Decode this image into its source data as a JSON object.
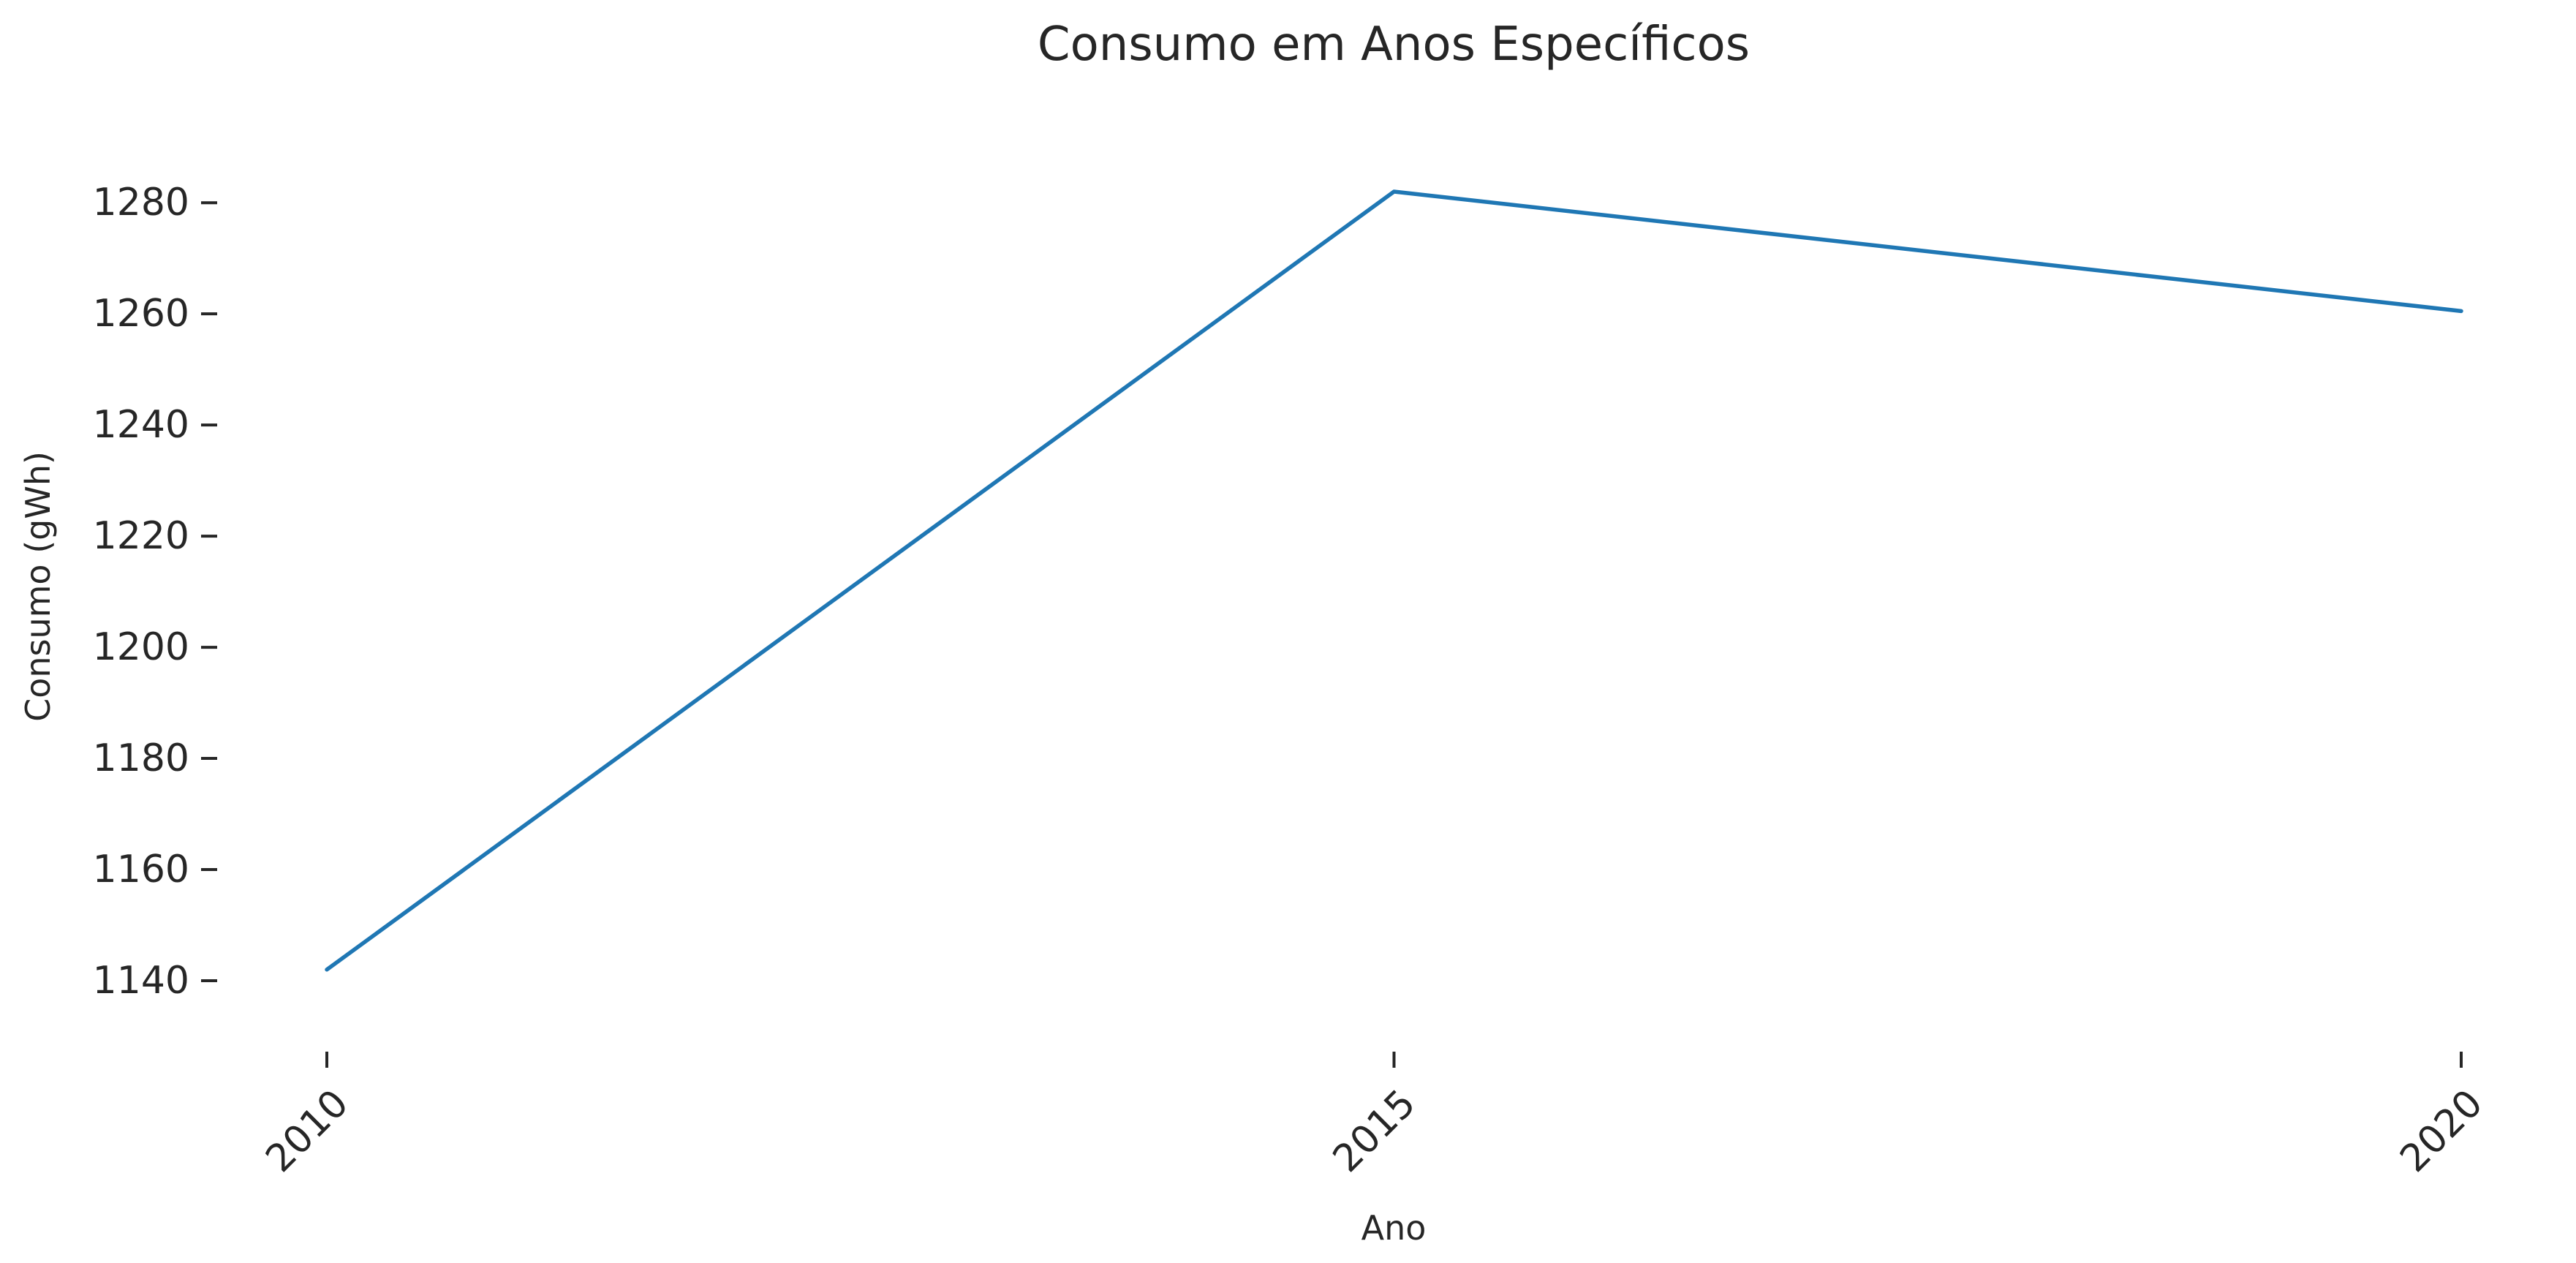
{
  "chart_data": {
    "type": "line",
    "title": "Consumo em Anos Específicos",
    "xlabel": "Ano",
    "ylabel": "Consumo (gWh)",
    "x": [
      2010,
      2015,
      2020
    ],
    "series": [
      {
        "values": [
          1142,
          1282,
          1260.5
        ],
        "color": "#1f77b4"
      }
    ],
    "xticks": [
      "2010",
      "2015",
      "2020"
    ],
    "yticks": [
      1140,
      1160,
      1180,
      1200,
      1220,
      1240,
      1260,
      1280
    ],
    "ylim": [
      1135,
      1287
    ],
    "grid": false,
    "legend": "none"
  }
}
